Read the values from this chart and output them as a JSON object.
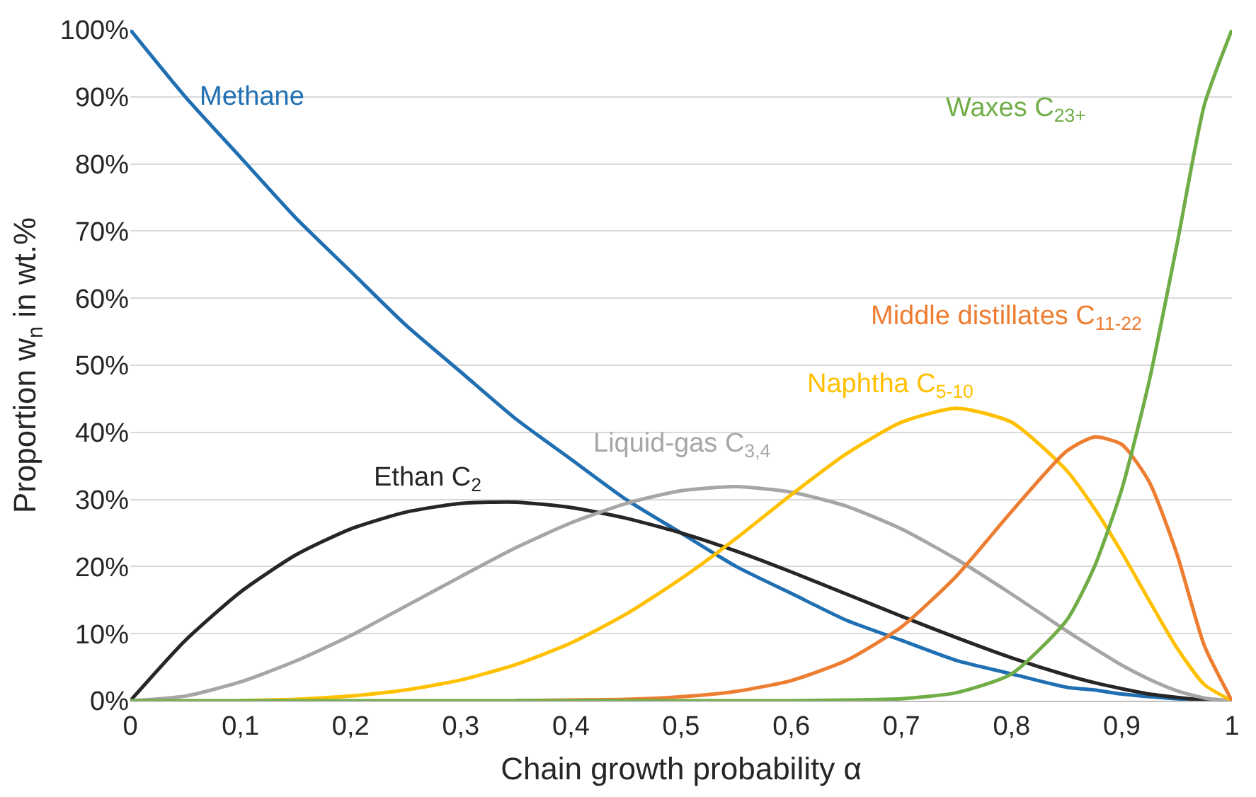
{
  "chart_data": {
    "type": "line",
    "xlabel": "Chain growth probability α",
    "ylabel": "Proportion w$_{n}$ in wt.%",
    "x": [
      0,
      0.05,
      0.1,
      0.15,
      0.2,
      0.25,
      0.3,
      0.35,
      0.4,
      0.45,
      0.5,
      0.55,
      0.6,
      0.65,
      0.7,
      0.75,
      0.8,
      0.85,
      0.875,
      0.9,
      0.925,
      0.95,
      0.975,
      1
    ],
    "series": [
      {
        "name": "Methane",
        "color": "#1f6fb2",
        "values": [
          100,
          90,
          81,
          72,
          64,
          56,
          49,
          42,
          36,
          30,
          25,
          20,
          16,
          12,
          9,
          6,
          4,
          2,
          1.6,
          1,
          0.6,
          0.3,
          0.1,
          0
        ]
      },
      {
        "name": "Ethan C$_{2}$",
        "color": "#262626",
        "values": [
          0,
          9.0,
          16.2,
          21.7,
          25.6,
          28.1,
          29.4,
          29.6,
          28.8,
          27.2,
          25.0,
          22.3,
          19.2,
          15.9,
          12.6,
          9.4,
          6.4,
          3.8,
          2.7,
          1.8,
          1.0,
          0.5,
          0.1,
          0
        ]
      },
      {
        "name": "Liquid-gas C$_{3,4}$",
        "color": "#a6a6a6",
        "values": [
          0,
          0.7,
          2.8,
          5.9,
          9.7,
          14.1,
          18.5,
          22.8,
          26.5,
          29.4,
          31.3,
          31.9,
          31.1,
          29.0,
          25.6,
          21.1,
          15.9,
          10.4,
          7.8,
          5.3,
          3.2,
          1.5,
          0.4,
          0
        ]
      },
      {
        "name": "Naphtha C$_{5-10}$",
        "color": "#ffc000",
        "values": [
          null,
          null,
          0,
          0.2,
          0.7,
          1.6,
          3.1,
          5.4,
          8.6,
          12.9,
          18.2,
          24.2,
          30.7,
          36.8,
          41.5,
          43.6,
          41.5,
          34.3,
          28.7,
          22.1,
          14.9,
          7.9,
          2.4,
          0
        ]
      },
      {
        "name": "Middle distillates C$_{11-22}$",
        "color": "#ed7d31",
        "values": [
          null,
          null,
          null,
          null,
          null,
          null,
          null,
          0,
          0.1,
          0.2,
          0.6,
          1.4,
          3.0,
          6.0,
          11.0,
          18.6,
          28.2,
          37.2,
          39.3,
          38.2,
          32.6,
          21.9,
          8.2,
          0
        ]
      },
      {
        "name": "Waxes C$_{23+}$",
        "color": "#70ad47",
        "values": [
          0,
          0,
          0,
          0,
          0,
          0,
          0,
          0,
          0,
          0,
          0,
          0,
          0,
          0.1,
          0.3,
          1.2,
          4.0,
          12.0,
          19.9,
          31.5,
          47.7,
          67.9,
          88.8,
          100
        ]
      }
    ],
    "xlim": [
      0,
      1
    ],
    "xticks": [
      0,
      {
        "value": 0.1,
        "label": "0,1"
      },
      {
        "value": 0.2,
        "label": "0,2"
      },
      {
        "value": 0.3,
        "label": "0,3"
      },
      {
        "value": 0.4,
        "label": "0,4"
      },
      {
        "value": 0.5,
        "label": "0,5"
      },
      {
        "value": 0.6,
        "label": "0,6"
      },
      {
        "value": 0.7,
        "label": "0,7"
      },
      {
        "value": 0.8,
        "label": "0,8"
      },
      {
        "value": 0.9,
        "label": "0,9"
      },
      1
    ],
    "ylim": [
      0,
      100
    ],
    "yticks": [
      {
        "value": 0,
        "label": "0%"
      },
      {
        "value": 10,
        "label": "10%"
      },
      {
        "value": 20,
        "label": "20%"
      },
      {
        "value": 30,
        "label": "30%"
      },
      {
        "value": 40,
        "label": "40%"
      },
      {
        "value": 50,
        "label": "50%"
      },
      {
        "value": 60,
        "label": "60%"
      },
      {
        "value": 70,
        "label": "70%"
      },
      {
        "value": 80,
        "label": "80%"
      },
      {
        "value": 90,
        "label": "90%"
      },
      {
        "value": 100,
        "label": "100%"
      }
    ],
    "grid": "y",
    "legend": false,
    "marker": "none",
    "line_style": "solid"
  }
}
